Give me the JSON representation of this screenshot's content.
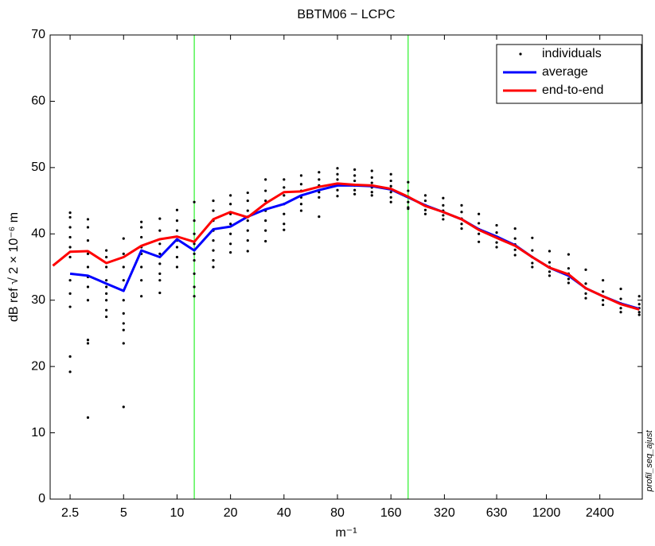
{
  "chart_data": {
    "type": "line",
    "title": "BBTM06 − LCPC",
    "x_label": "m⁻¹",
    "y_label": "dB ref √ 2 × 10⁻⁶ m",
    "side_note": "profil_seq_ajust",
    "x_scale": "log",
    "xlim": [
      1.93,
      4160
    ],
    "ylim": [
      0,
      70
    ],
    "xticks": [
      2.5,
      5,
      10,
      20,
      40,
      80,
      160,
      320,
      630,
      1200,
      2400
    ],
    "yticks": [
      0,
      10,
      20,
      30,
      40,
      50,
      60,
      70
    ],
    "vlines": [
      12.5,
      200
    ],
    "vline_color": "#00ee00",
    "legend": "northeast",
    "x": [
      2,
      2.5,
      3.15,
      4,
      5,
      6.3,
      8,
      10,
      12.5,
      16,
      20,
      25,
      31.5,
      40,
      50,
      63,
      80,
      100,
      125,
      160,
      200,
      250,
      315,
      400,
      500,
      630,
      800,
      1000,
      1250,
      1600,
      2000,
      2500,
      3150,
      4000
    ],
    "series": [
      {
        "name": "individuals",
        "type": "scatter",
        "color": "#000000",
        "values": [
          [],
          [
            43.2,
            42.5,
            41,
            39.5,
            38,
            36.5,
            33,
            31,
            29,
            21.5,
            19.2
          ],
          [
            42.2,
            41,
            39,
            37,
            35,
            33.5,
            32,
            30,
            24,
            23.5,
            12.3
          ],
          [
            37.5,
            36.5,
            35,
            33,
            32,
            31,
            30,
            28.5,
            27.5
          ],
          [
            39.3,
            37,
            35,
            33,
            31.5,
            30,
            28,
            26.5,
            25.5,
            23.5,
            13.9
          ],
          [
            41.8,
            41,
            39.5,
            38,
            37,
            35,
            33,
            30.6
          ],
          [
            42.3,
            40.5,
            38.5,
            37,
            35.5,
            34,
            33,
            31.1
          ],
          [
            43.6,
            42,
            40.5,
            39,
            38,
            36.5,
            35
          ],
          [
            44.8,
            42,
            40,
            38.5,
            37,
            36,
            34,
            32,
            30.6
          ],
          [
            45,
            43.5,
            42,
            40.5,
            39,
            37.5,
            36,
            35
          ],
          [
            45.8,
            44.5,
            43,
            41.5,
            40,
            38.5,
            37.2
          ],
          [
            46.2,
            45,
            43.5,
            42,
            40.5,
            39,
            37.4
          ],
          [
            48.2,
            46.5,
            45,
            43.5,
            42,
            40.5,
            38.9
          ],
          [
            48.2,
            47,
            45.8,
            44.5,
            43,
            41.5,
            40.6
          ],
          [
            48.8,
            47.5,
            46.5,
            45.5,
            44.5,
            43.5
          ],
          [
            49.3,
            48.2,
            47.3,
            46.3,
            45.5,
            42.6
          ],
          [
            49.9,
            49,
            48.2,
            47.4,
            46.6,
            45.7
          ],
          [
            49.7,
            48.8,
            48,
            47.3,
            46.6,
            46
          ],
          [
            49.5,
            48.5,
            47.7,
            47,
            46.3,
            45.8
          ],
          [
            49,
            48,
            47.2,
            46.3,
            45.5,
            44.8
          ],
          [
            47.8,
            46.5,
            45.6,
            44.8,
            44,
            43.8
          ],
          [
            45.8,
            45,
            44.3,
            43.6,
            43
          ],
          [
            45.4,
            44.3,
            43.5,
            42.8,
            42.2
          ],
          [
            44.3,
            43.3,
            42.3,
            41.5,
            40.8
          ],
          [
            43,
            41.6,
            40.7,
            40,
            38.8
          ],
          [
            41.3,
            40.2,
            39.5,
            38.7,
            38
          ],
          [
            40.8,
            39.3,
            38.4,
            37.6,
            36.8
          ],
          [
            39.4,
            37.5,
            36.5,
            35.6,
            35
          ],
          [
            37.4,
            35.7,
            35,
            34.3,
            33.7
          ],
          [
            36.9,
            34.8,
            34,
            33.2,
            32.6
          ],
          [
            34.6,
            32.5,
            31.8,
            31,
            30.3
          ],
          [
            33,
            31.3,
            30.6,
            30,
            29.3
          ],
          [
            31.7,
            30.2,
            29.5,
            28.8,
            28.2
          ],
          [
            30.6,
            29.4,
            28.8,
            28.2,
            27.8
          ]
        ]
      },
      {
        "name": "average",
        "color": "#0000ff",
        "values": [
          null,
          34,
          33.7,
          32.5,
          31.4,
          37.5,
          36.5,
          39.2,
          37.5,
          40.7,
          41.1,
          42.6,
          43.7,
          44.5,
          45.8,
          46.6,
          47.3,
          47.3,
          47.2,
          46.7,
          45.5,
          44.3,
          43.3,
          42.2,
          40.7,
          39.6,
          38.3,
          36.5,
          34.9,
          33.7,
          31.8,
          30.6,
          29.5,
          28.7
        ]
      },
      {
        "name": "end-to-end",
        "color": "#ff0000",
        "values": [
          35.2,
          37.3,
          37.4,
          35.6,
          36.5,
          38.2,
          39.2,
          39.6,
          38.8,
          42.2,
          43.3,
          42.5,
          44.6,
          46.3,
          46.4,
          47.1,
          47.6,
          47.4,
          47.3,
          46.8,
          45.6,
          44.2,
          43.3,
          42.2,
          40.6,
          39.4,
          38.2,
          36.5,
          34.9,
          33.9,
          31.8,
          30.6,
          29.4,
          28.6
        ]
      }
    ]
  }
}
